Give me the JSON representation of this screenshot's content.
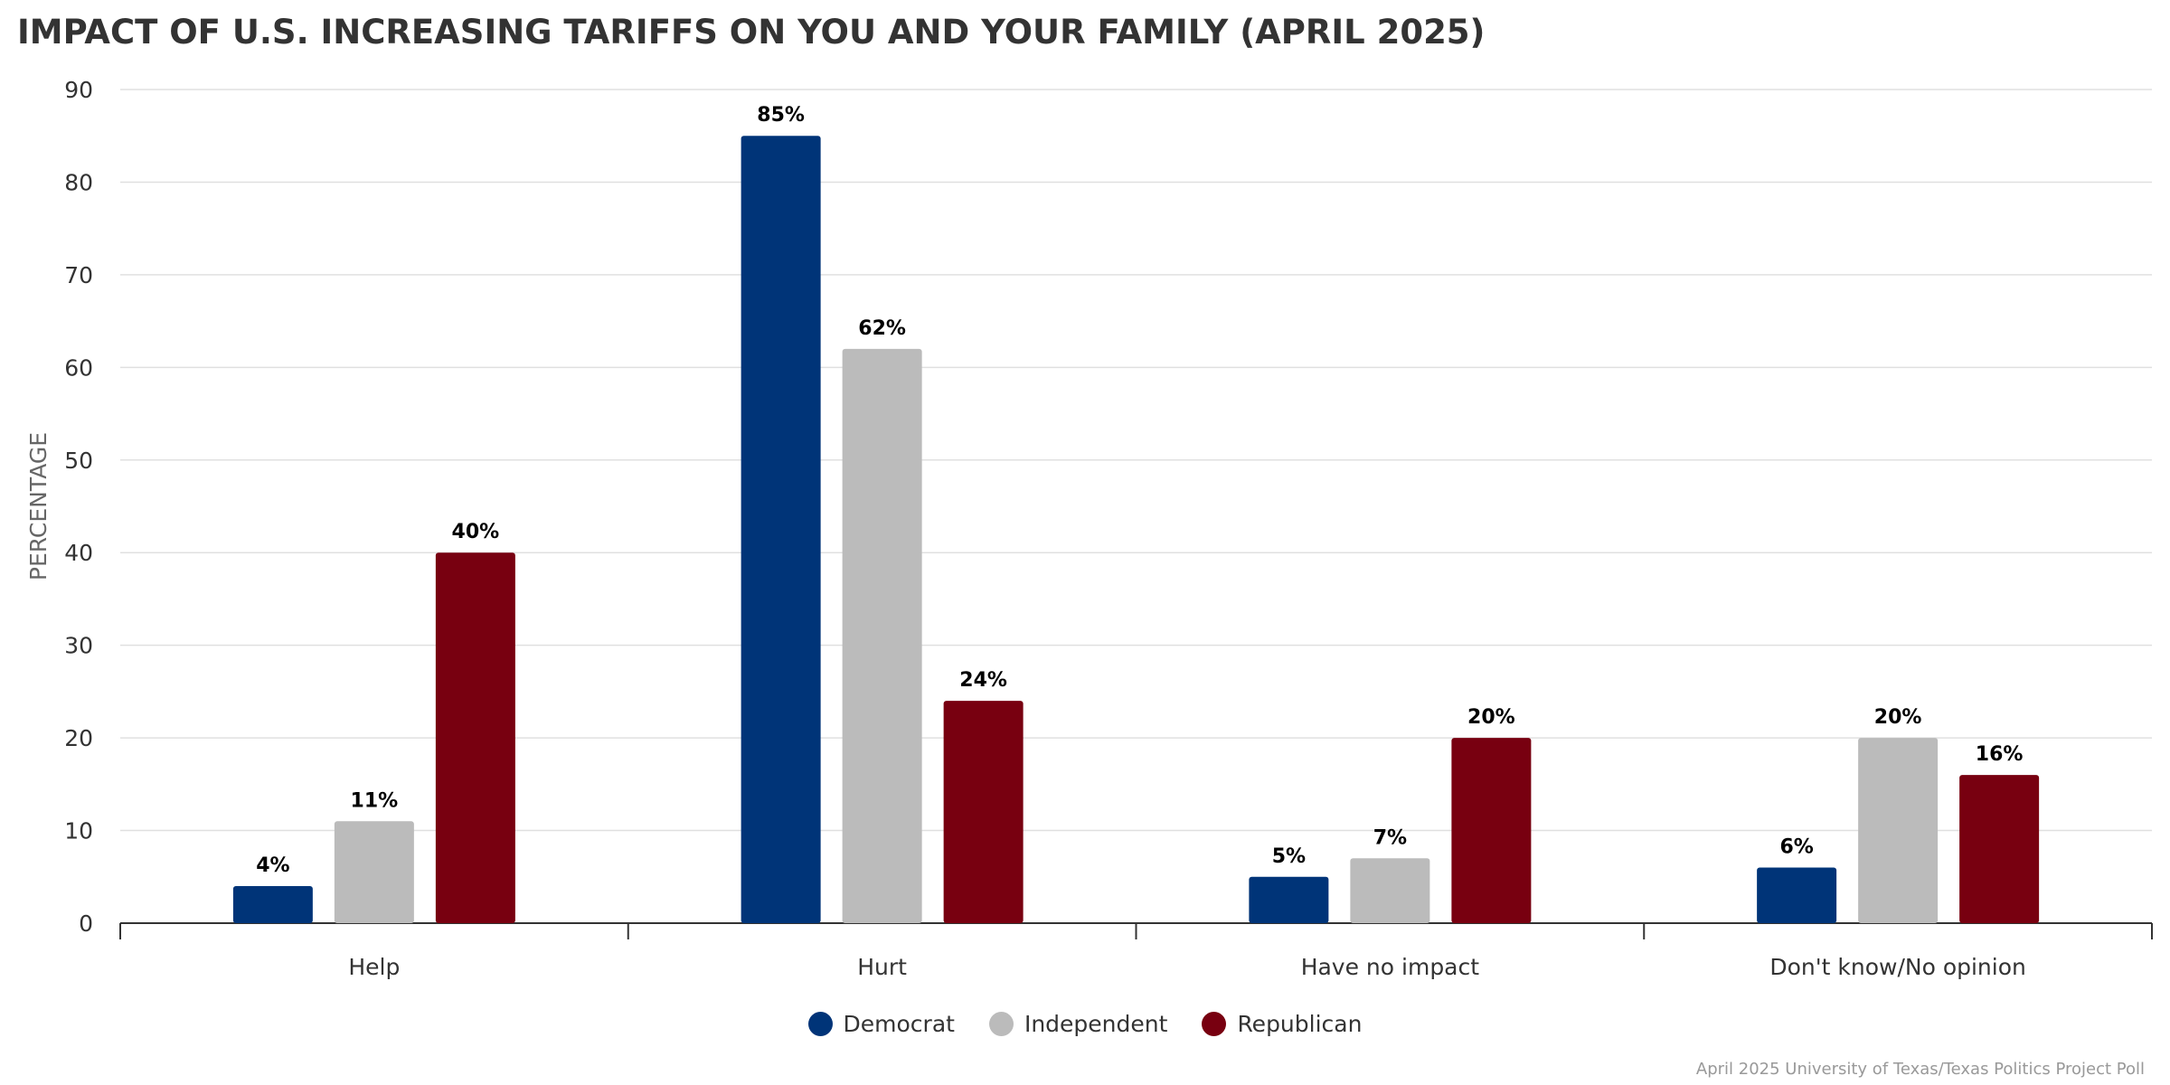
{
  "chart_data": {
    "type": "bar",
    "title": "IMPACT OF U.S. INCREASING TARIFFS ON YOU AND YOUR FAMILY (APRIL 2025)",
    "xlabel": "",
    "ylabel": "PERCENTAGE",
    "ylim": [
      0,
      90
    ],
    "yticks": [
      0,
      10,
      20,
      30,
      40,
      50,
      60,
      70,
      80,
      90
    ],
    "grid": true,
    "legend_position": "bottom-center",
    "categories": [
      "Help",
      "Hurt",
      "Have no impact",
      "Don't know/No opinion"
    ],
    "series": [
      {
        "name": "Democrat",
        "color": "#003478",
        "values": [
          4,
          85,
          5,
          6
        ],
        "labels": [
          "4%",
          "85%",
          "5%",
          "6%"
        ]
      },
      {
        "name": "Independent",
        "color": "#bbbbbb",
        "values": [
          11,
          62,
          7,
          20
        ],
        "labels": [
          "11%",
          "62%",
          "7%",
          "20%"
        ]
      },
      {
        "name": "Republican",
        "color": "#780010",
        "values": [
          40,
          24,
          20,
          16
        ],
        "labels": [
          "40%",
          "24%",
          "20%",
          "16%"
        ]
      }
    ],
    "credit": "April 2025 University of Texas/Texas Politics Project Poll"
  }
}
